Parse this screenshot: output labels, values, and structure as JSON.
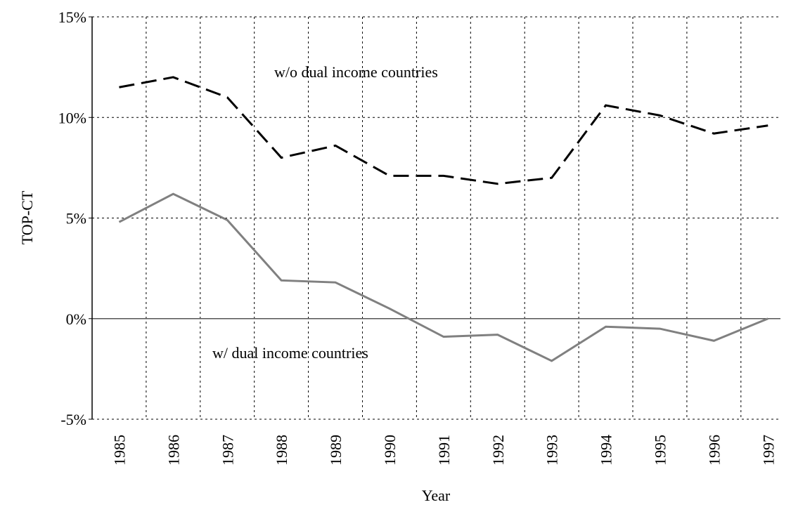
{
  "chart_data": {
    "type": "line",
    "x_label": "Year",
    "y_label": "TOP-CT",
    "categories": [
      "1985",
      "1986",
      "1987",
      "1988",
      "1989",
      "1990",
      "1991",
      "1992",
      "1993",
      "1994",
      "1995",
      "1996",
      "1997"
    ],
    "series": [
      {
        "name": "w/o dual income countries",
        "color": "#000000",
        "dash": "dashed",
        "values": [
          11.5,
          12.0,
          11.0,
          8.0,
          8.6,
          7.1,
          7.1,
          6.7,
          7.0,
          10.6,
          10.1,
          9.2,
          9.6
        ]
      },
      {
        "name": "w/ dual income countries",
        "color": "#808080",
        "dash": "solid",
        "values": [
          4.8,
          6.2,
          4.9,
          1.9,
          1.8,
          0.5,
          -0.9,
          -0.8,
          -2.1,
          -0.4,
          -0.5,
          -1.1,
          0.0
        ]
      }
    ],
    "ylim": [
      -5,
      15
    ],
    "yticks": [
      {
        "value": -5,
        "label": "-5%"
      },
      {
        "value": 0,
        "label": "0%"
      },
      {
        "value": 5,
        "label": "5%"
      },
      {
        "value": 10,
        "label": "10%"
      },
      {
        "value": 15,
        "label": "15%"
      }
    ],
    "grid": true
  }
}
